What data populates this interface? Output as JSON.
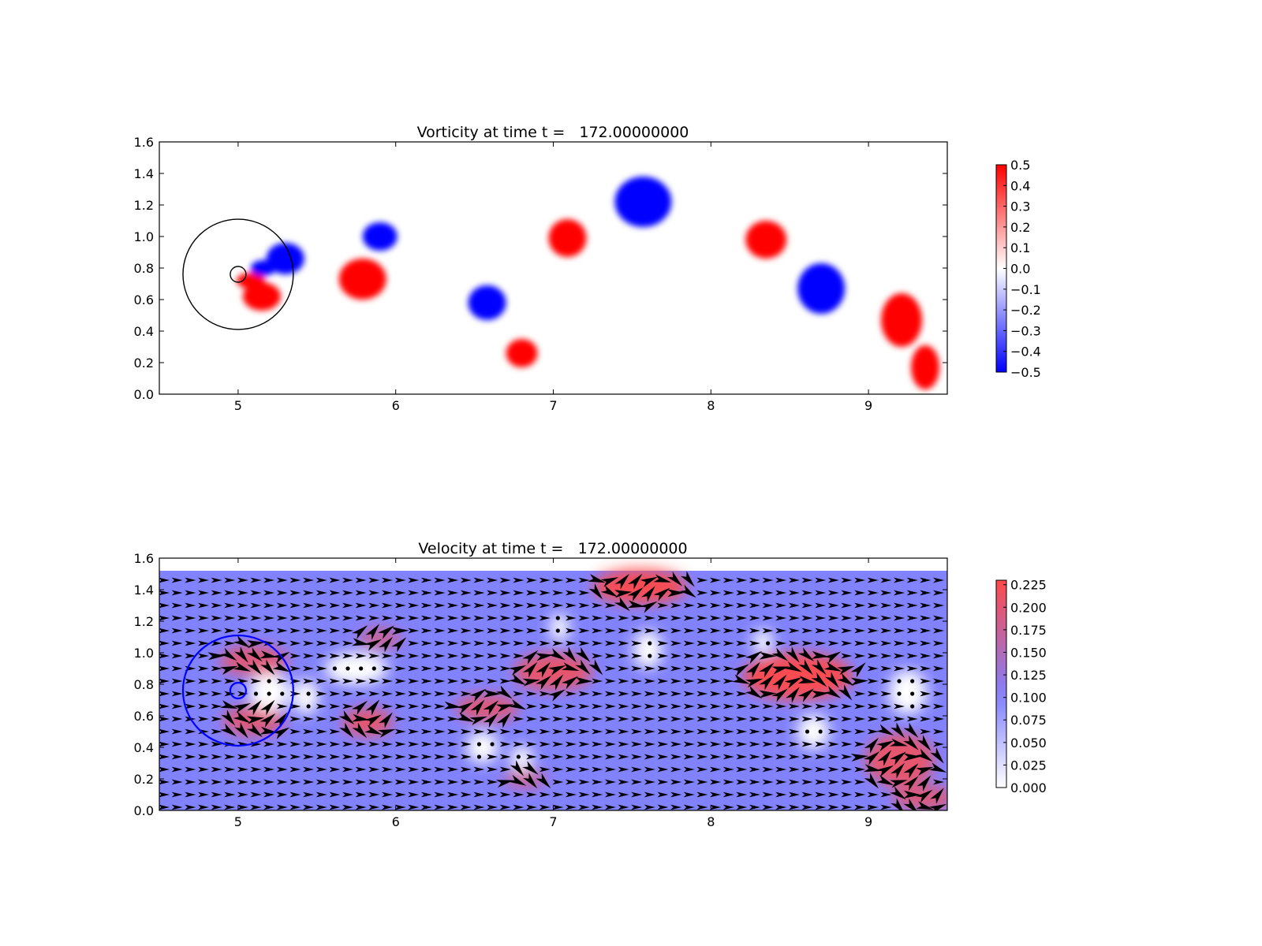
{
  "chart_data": [
    {
      "type": "heatmap",
      "title": "Vorticity at time t =   172.00000000",
      "xlim": [
        4.5,
        9.5
      ],
      "ylim": [
        0.0,
        1.6
      ],
      "xticks": [
        "5",
        "6",
        "7",
        "8",
        "9"
      ],
      "yticks": [
        "0.0",
        "0.2",
        "0.4",
        "0.6",
        "0.8",
        "1.0",
        "1.2",
        "1.4",
        "1.6"
      ],
      "colormap": "bwr",
      "color_low": "#0000ff",
      "color_mid": "#ffffff",
      "color_high": "#ff0000",
      "colorbar": {
        "range": [
          -0.5,
          0.5
        ],
        "ticks": [
          "0.5",
          "0.4",
          "0.3",
          "0.2",
          "0.1",
          "0.0",
          "−0.1",
          "−0.2",
          "−0.3",
          "−0.4",
          "−0.5"
        ],
        "placement": "right"
      },
      "circles": [
        {
          "cx": 5.0,
          "cy": 0.76,
          "r": 0.35,
          "color": "#000000"
        },
        {
          "cx": 5.0,
          "cy": 0.76,
          "r": 0.05,
          "color": "#000000"
        }
      ],
      "vortices": [
        {
          "x": 5.15,
          "y": 0.62,
          "rx": 0.12,
          "ry": 0.09,
          "value": 0.5
        },
        {
          "x": 5.08,
          "y": 0.72,
          "rx": 0.09,
          "ry": 0.05,
          "value": 0.5
        },
        {
          "x": 5.3,
          "y": 0.86,
          "rx": 0.12,
          "ry": 0.1,
          "value": -0.5
        },
        {
          "x": 5.16,
          "y": 0.8,
          "rx": 0.08,
          "ry": 0.05,
          "value": -0.5
        },
        {
          "x": 5.79,
          "y": 0.73,
          "rx": 0.15,
          "ry": 0.13,
          "value": 0.5
        },
        {
          "x": 5.9,
          "y": 1.0,
          "rx": 0.11,
          "ry": 0.09,
          "value": -0.5
        },
        {
          "x": 6.58,
          "y": 0.58,
          "rx": 0.12,
          "ry": 0.11,
          "value": -0.5
        },
        {
          "x": 6.8,
          "y": 0.26,
          "rx": 0.1,
          "ry": 0.09,
          "value": 0.5
        },
        {
          "x": 7.09,
          "y": 0.99,
          "rx": 0.12,
          "ry": 0.12,
          "value": 0.5
        },
        {
          "x": 7.57,
          "y": 1.22,
          "rx": 0.18,
          "ry": 0.16,
          "value": -0.5
        },
        {
          "x": 8.35,
          "y": 0.98,
          "rx": 0.13,
          "ry": 0.12,
          "value": 0.5
        },
        {
          "x": 8.7,
          "y": 0.67,
          "rx": 0.15,
          "ry": 0.16,
          "value": -0.5
        },
        {
          "x": 9.21,
          "y": 0.47,
          "rx": 0.13,
          "ry": 0.17,
          "value": 0.5
        },
        {
          "x": 9.36,
          "y": 0.17,
          "rx": 0.09,
          "ry": 0.14,
          "value": 0.5
        }
      ]
    },
    {
      "type": "heatmap",
      "title": "Velocity at time t =   172.00000000",
      "xlim": [
        4.5,
        9.5
      ],
      "ylim": [
        0.0,
        1.6
      ],
      "xticks": [
        "5",
        "6",
        "7",
        "8",
        "9"
      ],
      "yticks": [
        "0.0",
        "0.2",
        "0.4",
        "0.6",
        "0.8",
        "1.0",
        "1.2",
        "1.4",
        "1.6"
      ],
      "colormap": "white-blue-red",
      "color_low": "#ffffff",
      "color_mid": "#8080ff",
      "color_high": "#ff4a4a",
      "field_top_y": 1.52,
      "background_speed": 0.1,
      "colorbar": {
        "range": [
          0.0,
          0.23
        ],
        "ticks": [
          "0.225",
          "0.200",
          "0.175",
          "0.150",
          "0.125",
          "0.100",
          "0.075",
          "0.050",
          "0.025",
          "0.000"
        ],
        "placement": "right"
      },
      "circles": [
        {
          "cx": 5.0,
          "cy": 0.76,
          "r": 0.35,
          "color": "#0000ff"
        },
        {
          "cx": 5.0,
          "cy": 0.76,
          "r": 0.05,
          "color": "#0000ff"
        }
      ],
      "fast_regions": [
        {
          "x": 5.1,
          "y": 0.95,
          "rx": 0.22,
          "ry": 0.1,
          "value": 0.2
        },
        {
          "x": 5.1,
          "y": 0.57,
          "rx": 0.2,
          "ry": 0.1,
          "value": 0.2
        },
        {
          "x": 5.82,
          "y": 0.56,
          "rx": 0.16,
          "ry": 0.09,
          "value": 0.21
        },
        {
          "x": 5.9,
          "y": 1.09,
          "rx": 0.14,
          "ry": 0.07,
          "value": 0.18
        },
        {
          "x": 6.58,
          "y": 0.65,
          "rx": 0.2,
          "ry": 0.09,
          "value": 0.2
        },
        {
          "x": 7.0,
          "y": 0.88,
          "rx": 0.25,
          "ry": 0.12,
          "value": 0.21
        },
        {
          "x": 6.82,
          "y": 0.2,
          "rx": 0.14,
          "ry": 0.06,
          "value": 0.18
        },
        {
          "x": 7.55,
          "y": 1.42,
          "rx": 0.3,
          "ry": 0.11,
          "value": 0.23
        },
        {
          "x": 8.55,
          "y": 0.85,
          "rx": 0.35,
          "ry": 0.15,
          "value": 0.23
        },
        {
          "x": 9.2,
          "y": 0.32,
          "rx": 0.22,
          "ry": 0.17,
          "value": 0.21
        },
        {
          "x": 9.35,
          "y": 0.08,
          "rx": 0.2,
          "ry": 0.08,
          "value": 0.2
        }
      ],
      "stagnation_regions": [
        {
          "x": 5.2,
          "y": 0.75,
          "rx": 0.13,
          "ry": 0.12
        },
        {
          "x": 5.43,
          "y": 0.72,
          "rx": 0.08,
          "ry": 0.11
        },
        {
          "x": 5.75,
          "y": 0.9,
          "rx": 0.2,
          "ry": 0.1
        },
        {
          "x": 6.55,
          "y": 0.4,
          "rx": 0.1,
          "ry": 0.1
        },
        {
          "x": 6.8,
          "y": 0.33,
          "rx": 0.07,
          "ry": 0.08
        },
        {
          "x": 7.04,
          "y": 1.16,
          "rx": 0.06,
          "ry": 0.09
        },
        {
          "x": 7.6,
          "y": 1.02,
          "rx": 0.09,
          "ry": 0.12
        },
        {
          "x": 8.33,
          "y": 1.07,
          "rx": 0.06,
          "ry": 0.08
        },
        {
          "x": 8.65,
          "y": 0.5,
          "rx": 0.1,
          "ry": 0.11
        },
        {
          "x": 9.25,
          "y": 0.75,
          "rx": 0.12,
          "ry": 0.14
        }
      ]
    }
  ]
}
